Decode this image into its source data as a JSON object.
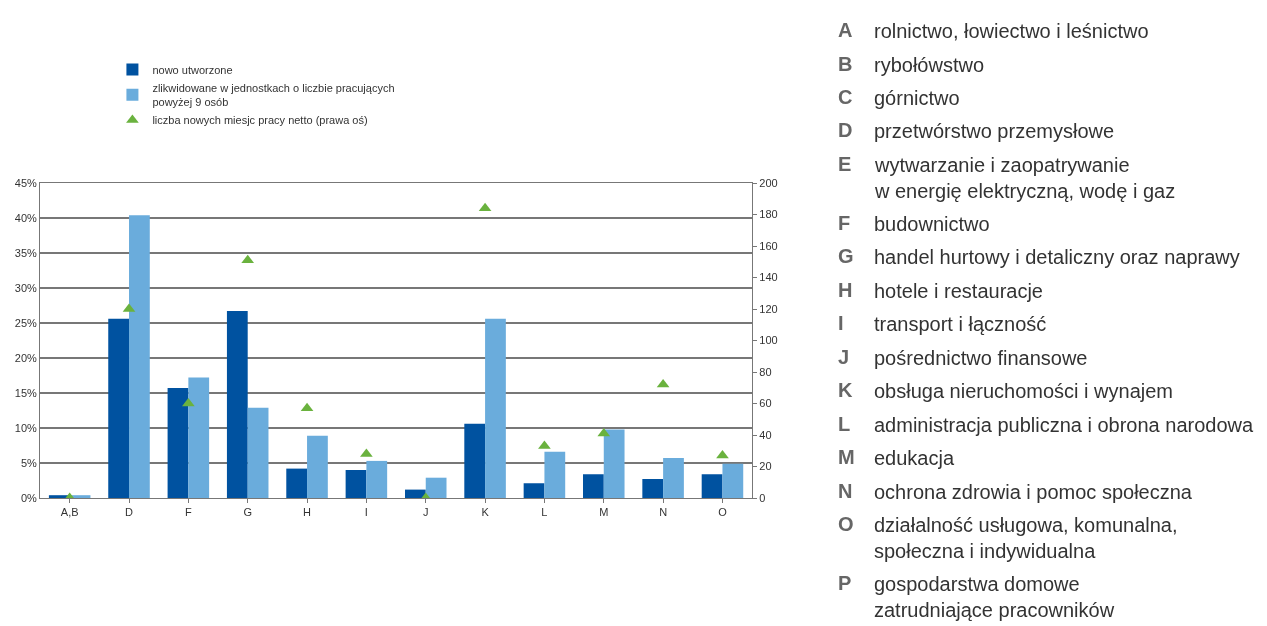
{
  "chart_data": {
    "type": "bar",
    "categories": [
      "A,B",
      "D",
      "F",
      "G",
      "H",
      "I",
      "J",
      "K",
      "L",
      "M",
      "N",
      "O"
    ],
    "series": [
      {
        "name": "nowo utworzone",
        "color": "#0052a0",
        "values": [
          0.4,
          25.6,
          15.7,
          26.7,
          4.2,
          4.0,
          1.2,
          10.6,
          2.1,
          3.4,
          2.7,
          3.4
        ]
      },
      {
        "name": "zlikwidowane w jednostkach o liczbie pracujących\npowyżej 9 osób",
        "color": "#6aacdc",
        "values": [
          0.4,
          40.4,
          17.2,
          12.9,
          8.9,
          5.3,
          2.9,
          25.6,
          6.6,
          9.8,
          5.7,
          4.9
        ]
      },
      {
        "name": "liczba nowych miesjc pracy netto (prawa oś)",
        "type": "scatter",
        "axis": "y2",
        "marker": "triangle",
        "color": "#6ab23e",
        "values": [
          0,
          120,
          60,
          151,
          57,
          28,
          0,
          184,
          33,
          41,
          72,
          27
        ]
      }
    ],
    "ylim": [
      0,
      45
    ],
    "yticks": [
      {
        "value": 0,
        "label": "0%"
      },
      {
        "value": 5,
        "label": "5%"
      },
      {
        "value": 10,
        "label": "10%"
      },
      {
        "value": 15,
        "label": "15%"
      },
      {
        "value": 20,
        "label": "20%"
      },
      {
        "value": 25,
        "label": "25%"
      },
      {
        "value": 30,
        "label": "30%"
      },
      {
        "value": 35,
        "label": "35%"
      },
      {
        "value": 40,
        "label": "40%"
      },
      {
        "value": 45,
        "label": "45%"
      }
    ],
    "y2lim": [
      0,
      200
    ],
    "y2ticks": [
      0,
      20,
      40,
      60,
      80,
      100,
      120,
      140,
      160,
      180,
      200
    ],
    "grid": "y",
    "legend": "top left",
    "annotations": [
      "A rolnictwo, łowiectwo i leśnictwo",
      "B rybołówstwo",
      "C górnictwo",
      "D przetwórstwo przemysłowe",
      "E wytwarzanie i zaopatrywanie\nw energię elektryczną, wodę i gaz",
      "F budownictwo",
      "G handel hurtowy i detaliczny oraz naprawy",
      "H hotele i restauracje",
      "I transport i łączność",
      "J pośrednictwo finansowe",
      "K obsługa nieruchomości i wynajem",
      "L administracja publiczna i obrona narodowa",
      "M edukacja",
      "N ochrona zdrowia i pomoc społeczna",
      "O działalność usługowa, komunalna,\nspołeczna i indywidualna",
      "P gospodarstwa domowe\nzatrudniające pracowników"
    ]
  }
}
